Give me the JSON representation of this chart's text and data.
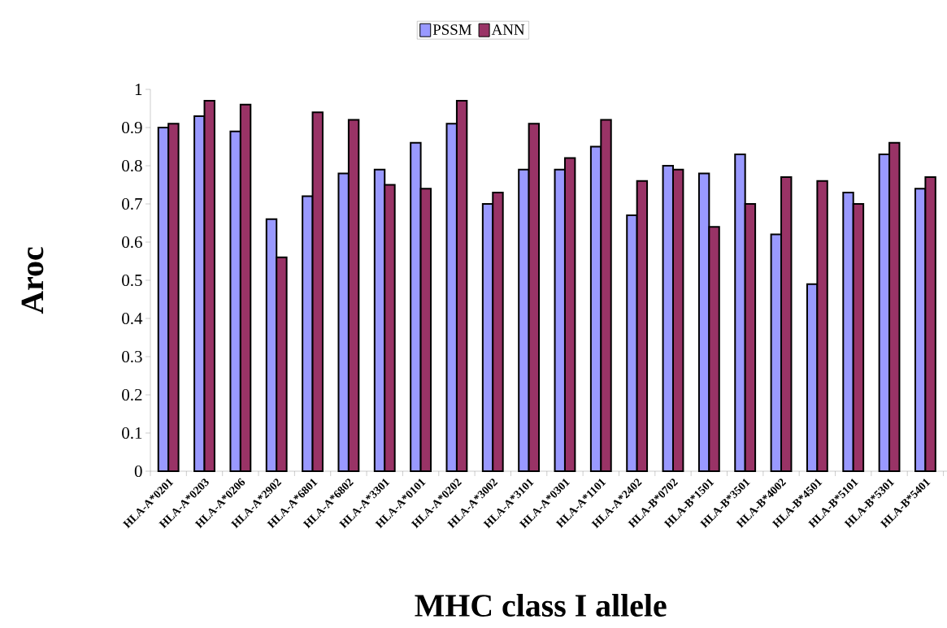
{
  "chart_data": {
    "type": "bar",
    "xlabel": "MHC class I allele",
    "ylabel": "Aroc",
    "categories": [
      "HLA-A*0201",
      "HLA-A*0203",
      "HLA-A*0206",
      "HLA-A*2902",
      "HLA-A*6801",
      "HLA-A*6802",
      "HLA-A*3301",
      "HLA-A*0101",
      "HLA-A*0202",
      "HLA-A*3002",
      "HLA-A*3101",
      "HLA-A*0301",
      "HLA-A*1101",
      "HLA-A*2402",
      "HLA-B*0702",
      "HLA-B*1501",
      "HLA-B*3501",
      "HLA-B*4002",
      "HLA-B*4501",
      "HLA-B*5101",
      "HLA-B*5301",
      "HLA-B*5401"
    ],
    "series": [
      {
        "name": "PSSM",
        "color": "#9999ff",
        "values": [
          0.9,
          0.93,
          0.89,
          0.66,
          0.72,
          0.78,
          0.79,
          0.86,
          0.91,
          0.7,
          0.79,
          0.79,
          0.85,
          0.67,
          0.8,
          0.78,
          0.83,
          0.62,
          0.49,
          0.73,
          0.83,
          0.74
        ]
      },
      {
        "name": "ANN",
        "color": "#993366",
        "values": [
          0.91,
          0.97,
          0.96,
          0.56,
          0.94,
          0.92,
          0.75,
          0.74,
          0.97,
          0.73,
          0.91,
          0.82,
          0.92,
          0.76,
          0.79,
          0.64,
          0.7,
          0.77,
          0.76,
          0.7,
          0.86,
          0.77
        ]
      }
    ],
    "ylim": [
      0,
      1
    ],
    "yticks": [
      0,
      0.1,
      0.2,
      0.3,
      0.4,
      0.5,
      0.6,
      0.7,
      0.8,
      0.9,
      1
    ],
    "legend": "top",
    "grid": false
  }
}
